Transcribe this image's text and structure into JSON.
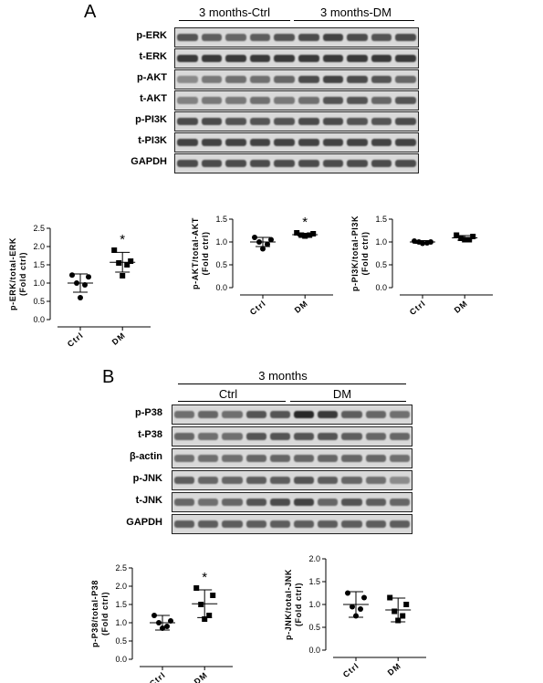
{
  "figure": {
    "panel_a": {
      "letter": "A",
      "group_ctrl": "3 months-Ctrl",
      "group_dm": "3 months-DM",
      "blots": [
        {
          "label": "p-ERK",
          "intensity": [
            0.7,
            0.65,
            0.6,
            0.65,
            0.7,
            0.75,
            0.8,
            0.75,
            0.7,
            0.75
          ]
        },
        {
          "label": "t-ERK",
          "intensity": [
            0.85,
            0.85,
            0.85,
            0.85,
            0.85,
            0.85,
            0.85,
            0.85,
            0.85,
            0.85
          ]
        },
        {
          "label": "p-AKT",
          "intensity": [
            0.4,
            0.5,
            0.55,
            0.55,
            0.6,
            0.75,
            0.8,
            0.75,
            0.7,
            0.6
          ]
        },
        {
          "label": "t-AKT",
          "intensity": [
            0.45,
            0.5,
            0.5,
            0.55,
            0.5,
            0.55,
            0.7,
            0.7,
            0.6,
            0.7
          ]
        },
        {
          "label": "p-PI3K",
          "intensity": [
            0.75,
            0.75,
            0.7,
            0.7,
            0.7,
            0.75,
            0.75,
            0.7,
            0.7,
            0.75
          ]
        },
        {
          "label": "t-PI3K",
          "intensity": [
            0.8,
            0.8,
            0.8,
            0.8,
            0.8,
            0.8,
            0.8,
            0.8,
            0.8,
            0.8
          ]
        },
        {
          "label": "GAPDH",
          "intensity": [
            0.75,
            0.75,
            0.75,
            0.75,
            0.75,
            0.75,
            0.75,
            0.75,
            0.75,
            0.75
          ]
        }
      ]
    },
    "panel_b": {
      "letter": "B",
      "group_title": "3 months",
      "group_ctrl": "Ctrl",
      "group_dm": "DM",
      "blots": [
        {
          "label": "p-P38",
          "intensity": [
            0.55,
            0.6,
            0.55,
            0.7,
            0.7,
            0.95,
            0.85,
            0.65,
            0.6,
            0.55
          ]
        },
        {
          "label": "t-P38",
          "intensity": [
            0.6,
            0.55,
            0.55,
            0.7,
            0.7,
            0.7,
            0.7,
            0.65,
            0.6,
            0.6
          ]
        },
        {
          "label": "β-actin",
          "intensity": [
            0.55,
            0.55,
            0.55,
            0.6,
            0.6,
            0.6,
            0.6,
            0.6,
            0.6,
            0.55
          ]
        },
        {
          "label": "p-JNK",
          "intensity": [
            0.65,
            0.6,
            0.6,
            0.65,
            0.65,
            0.7,
            0.65,
            0.6,
            0.55,
            0.4
          ]
        },
        {
          "label": "t-JNK",
          "intensity": [
            0.6,
            0.55,
            0.6,
            0.7,
            0.75,
            0.8,
            0.6,
            0.7,
            0.65,
            0.6
          ]
        },
        {
          "label": "GAPDH",
          "intensity": [
            0.65,
            0.65,
            0.65,
            0.65,
            0.65,
            0.65,
            0.65,
            0.65,
            0.65,
            0.65
          ]
        }
      ]
    }
  },
  "chart_data": [
    {
      "type": "scatter",
      "ylabel": "p-ERK/total-ERK\n(Fold ctrl)",
      "categories": [
        "Ctrl",
        "DM"
      ],
      "ylim": [
        0,
        2.5
      ],
      "yticks": [
        "0.0",
        "0.5",
        "1.0",
        "1.5",
        "2.0",
        "2.5"
      ],
      "series": [
        {
          "category": "Ctrl",
          "marker": "circle",
          "values": [
            1.22,
            1.17,
            1.0,
            0.95,
            0.6
          ],
          "mean": 1.0,
          "sd": 0.25
        },
        {
          "category": "DM",
          "marker": "square",
          "values": [
            1.9,
            1.6,
            1.55,
            1.5,
            1.2
          ],
          "mean": 1.57,
          "sd": 0.27,
          "annotation": "*"
        }
      ]
    },
    {
      "type": "scatter",
      "ylabel": "p-AKT/total-AKT\n(Fold ctrl)",
      "categories": [
        "Ctrl",
        "DM"
      ],
      "ylim": [
        0,
        1.5
      ],
      "yticks": [
        "0.0",
        "0.5",
        "1.0",
        "1.5"
      ],
      "series": [
        {
          "category": "Ctrl",
          "marker": "circle",
          "values": [
            1.1,
            1.05,
            1.0,
            0.95,
            0.85
          ],
          "mean": 1.0,
          "sd": 0.1
        },
        {
          "category": "DM",
          "marker": "square",
          "values": [
            1.2,
            1.18,
            1.15,
            1.15,
            1.13
          ],
          "mean": 1.16,
          "sd": 0.03,
          "annotation": "*"
        }
      ]
    },
    {
      "type": "scatter",
      "ylabel": "p-PI3K/total-PI3K\n(Fold ctrl)",
      "categories": [
        "Ctrl",
        "DM"
      ],
      "ylim": [
        0,
        1.5
      ],
      "yticks": [
        "0.0",
        "0.5",
        "1.0",
        "1.5"
      ],
      "series": [
        {
          "category": "Ctrl",
          "marker": "circle",
          "values": [
            1.02,
            1.0,
            1.0,
            0.98,
            0.97
          ],
          "mean": 1.0,
          "sd": 0.03
        },
        {
          "category": "DM",
          "marker": "square",
          "values": [
            1.15,
            1.12,
            1.08,
            1.05,
            1.05
          ],
          "mean": 1.09,
          "sd": 0.05
        }
      ]
    },
    {
      "type": "scatter",
      "ylabel": "p-P38/total-P38\n(Fold ctrl)",
      "categories": [
        "Ctrl",
        "DM"
      ],
      "ylim": [
        0,
        2.5
      ],
      "yticks": [
        "0.0",
        "0.5",
        "1.0",
        "1.5",
        "2.0",
        "2.5"
      ],
      "series": [
        {
          "category": "Ctrl",
          "marker": "circle",
          "values": [
            1.2,
            1.05,
            1.0,
            0.9,
            0.85
          ],
          "mean": 1.0,
          "sd": 0.2
        },
        {
          "category": "DM",
          "marker": "square",
          "values": [
            1.95,
            1.75,
            1.5,
            1.2,
            1.1
          ],
          "mean": 1.52,
          "sd": 0.38,
          "annotation": "*"
        }
      ]
    },
    {
      "type": "scatter",
      "ylabel": "p-JNK/total-JNK\n(Fold ctrl)",
      "categories": [
        "Ctrl",
        "DM"
      ],
      "ylim": [
        0,
        2.0
      ],
      "yticks": [
        "0.0",
        "0.5",
        "1.0",
        "1.5",
        "2.0"
      ],
      "series": [
        {
          "category": "Ctrl",
          "marker": "circle",
          "values": [
            1.25,
            1.15,
            0.95,
            0.9,
            0.75
          ],
          "mean": 1.0,
          "sd": 0.28
        },
        {
          "category": "DM",
          "marker": "square",
          "values": [
            1.15,
            1.0,
            0.85,
            0.75,
            0.65
          ],
          "mean": 0.88,
          "sd": 0.26
        }
      ]
    }
  ]
}
